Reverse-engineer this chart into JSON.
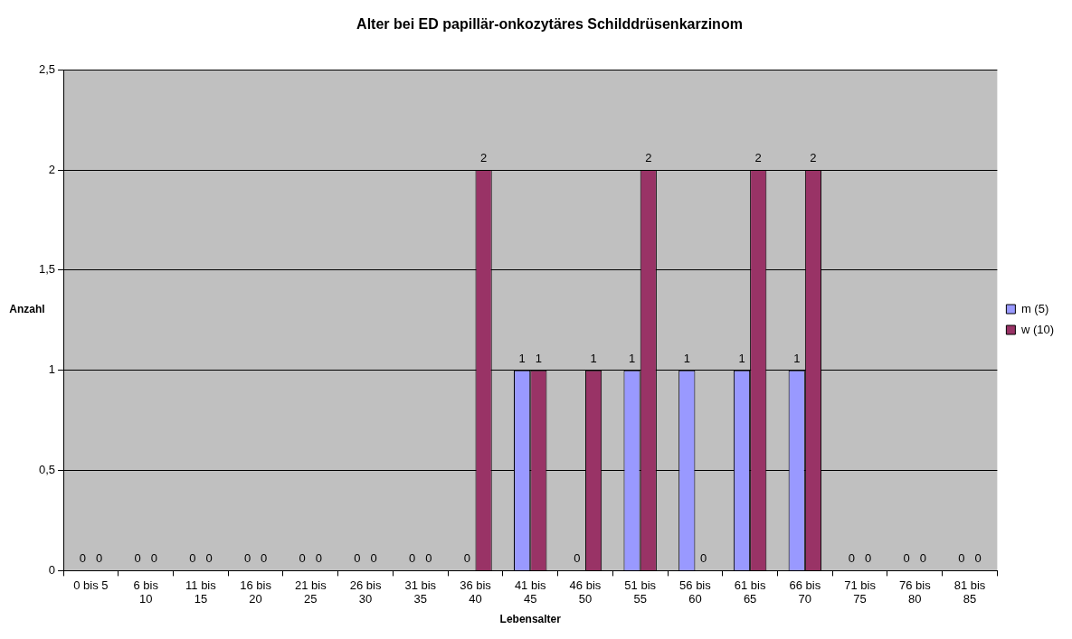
{
  "chart_data": {
    "type": "bar",
    "title": "Alter bei ED papillär-onkozytäres Schilddrüsenkarzinom",
    "xlabel": "Lebensalter",
    "ylabel": "Anzahl",
    "categories": [
      "0 bis 5",
      "6 bis 10",
      "11 bis 15",
      "16 bis 20",
      "21 bis 25",
      "26 bis 30",
      "31 bis 35",
      "36 bis 40",
      "41 bis 45",
      "46 bis 50",
      "51 bis 55",
      "56 bis 60",
      "61 bis 65",
      "66 bis 70",
      "71 bis 75",
      "76 bis 80",
      "81 bis 85"
    ],
    "series": [
      {
        "name": "m (5)",
        "color": "#9999ff",
        "values": [
          0,
          0,
          0,
          0,
          0,
          0,
          0,
          0,
          1,
          0,
          1,
          1,
          1,
          1,
          0,
          0,
          0
        ]
      },
      {
        "name": "w (10)",
        "color": "#993366",
        "values": [
          0,
          0,
          0,
          0,
          0,
          0,
          0,
          2,
          1,
          1,
          2,
          0,
          2,
          2,
          0,
          0,
          0
        ]
      }
    ],
    "ylim": [
      0,
      2.5
    ],
    "yticks": [
      0,
      {
        "value": 0.5,
        "label": "0,5"
      },
      1,
      {
        "value": 1.5,
        "label": "1,5"
      },
      2,
      {
        "value": 2.5,
        "label": "2,5"
      }
    ],
    "grid": "y",
    "legend": "right",
    "data_labels": true
  }
}
